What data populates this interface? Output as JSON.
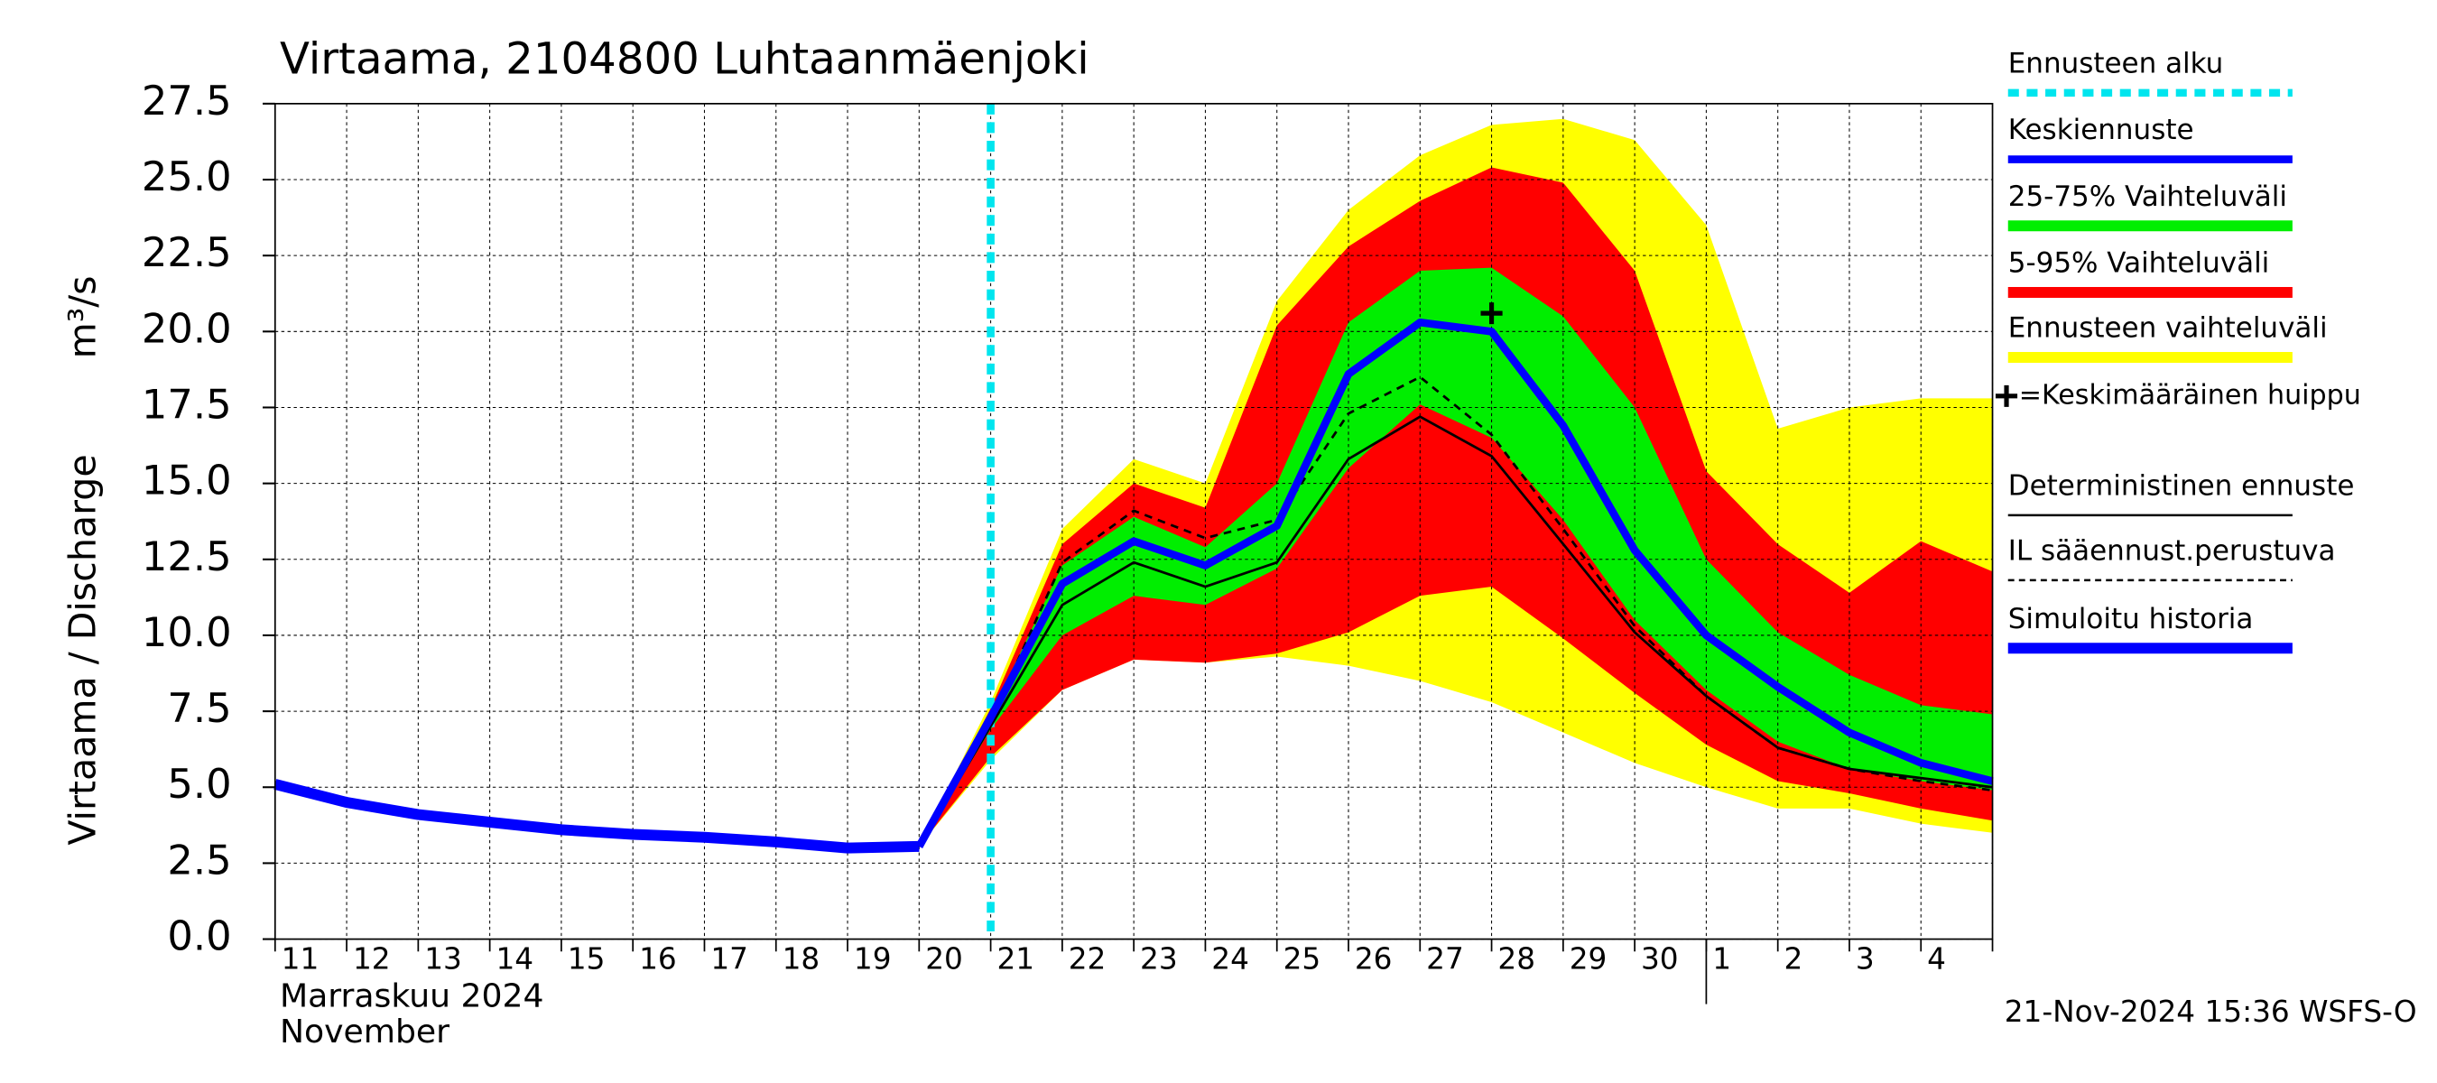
{
  "chart_data": {
    "type": "line",
    "title": "Virtaama, 2104800 Luhtaanmäenjoki",
    "ylabel": "Virtaama / Discharge",
    "yunit": "m³/s",
    "month_labels": [
      "Marraskuu 2024",
      "November"
    ],
    "footer": "21-Nov-2024 15:36 WSFS-O",
    "categories": [
      "11",
      "12",
      "13",
      "14",
      "15",
      "16",
      "17",
      "18",
      "19",
      "20",
      "21",
      "22",
      "23",
      "24",
      "25",
      "26",
      "27",
      "28",
      "29",
      "30",
      "1",
      "2",
      "3",
      "4",
      null
    ],
    "month_break": "1",
    "ylim": [
      0,
      27.5
    ],
    "yticks": [
      {
        "value": 0,
        "label": "0.0"
      },
      2.5,
      {
        "value": 5,
        "label": "5.0"
      },
      7.5,
      {
        "value": 10,
        "label": "10.0"
      },
      12.5,
      {
        "value": 15,
        "label": "15.0"
      },
      17.5,
      {
        "value": 20,
        "label": "20.0"
      },
      22.5,
      {
        "value": 25,
        "label": "25.0"
      },
      27.5
    ],
    "grid": true,
    "forecast_start": {
      "name": "Ennusteen alku",
      "color": "#00e5ee",
      "at": "21"
    },
    "bands": [
      {
        "name": "Ennusteen vaihteluväli",
        "color": "#ffff00",
        "high": [
          null,
          null,
          null,
          null,
          null,
          null,
          null,
          null,
          null,
          3.05,
          7.8,
          13.5,
          15.8,
          15.0,
          21.0,
          24.0,
          25.8,
          26.8,
          27.0,
          26.3,
          23.5,
          16.8,
          17.5,
          17.8,
          17.8
        ],
        "low": [
          null,
          null,
          null,
          null,
          null,
          null,
          null,
          null,
          null,
          3.05,
          5.9,
          8.2,
          9.2,
          9.1,
          9.3,
          9.0,
          8.5,
          7.8,
          6.8,
          5.8,
          5.0,
          4.3,
          4.3,
          3.8,
          3.5
        ]
      },
      {
        "name": "5-95% Vaihteluväli",
        "color": "#ff0000",
        "high": [
          null,
          null,
          null,
          null,
          null,
          null,
          null,
          null,
          null,
          3.05,
          7.6,
          13.0,
          15.0,
          14.2,
          20.2,
          22.8,
          24.3,
          25.4,
          24.9,
          22.0,
          15.4,
          13.0,
          11.4,
          13.1,
          12.1
        ],
        "low": [
          null,
          null,
          null,
          null,
          null,
          null,
          null,
          null,
          null,
          3.05,
          6.0,
          8.2,
          9.2,
          9.1,
          9.4,
          10.1,
          11.3,
          11.6,
          9.9,
          8.1,
          6.4,
          5.2,
          4.8,
          4.3,
          3.9
        ]
      },
      {
        "name": "25-75% Vaihteluväli",
        "color": "#00ee00",
        "high": [
          null,
          null,
          null,
          null,
          null,
          null,
          null,
          null,
          null,
          3.05,
          7.4,
          12.3,
          13.9,
          12.9,
          15.0,
          20.3,
          22.0,
          22.1,
          20.5,
          17.5,
          12.5,
          10.1,
          8.7,
          7.7,
          7.4
        ],
        "low": [
          null,
          null,
          null,
          null,
          null,
          null,
          null,
          null,
          null,
          3.05,
          6.9,
          10.0,
          11.3,
          11.0,
          12.2,
          15.5,
          17.6,
          16.5,
          13.8,
          10.5,
          8.2,
          6.5,
          5.6,
          5.2,
          4.9
        ]
      }
    ],
    "series": [
      {
        "name": "Keskiennuste",
        "color": "#0000ff",
        "style": "solid",
        "width": 5,
        "values": [
          null,
          null,
          null,
          null,
          null,
          null,
          null,
          null,
          null,
          3.05,
          7.3,
          11.7,
          13.1,
          12.3,
          13.6,
          18.6,
          20.3,
          20.0,
          16.9,
          12.8,
          10.0,
          8.3,
          6.8,
          5.8,
          5.2
        ]
      },
      {
        "name": "Deterministinen ennuste",
        "color": "#000000",
        "style": "solid",
        "width": 1.6,
        "values": [
          null,
          null,
          null,
          null,
          null,
          null,
          null,
          null,
          null,
          3.05,
          7.0,
          11.0,
          12.4,
          11.6,
          12.4,
          15.8,
          17.2,
          15.9,
          13.0,
          10.1,
          8.0,
          6.3,
          5.6,
          5.3,
          5.0
        ]
      },
      {
        "name": "IL sääennust.perustuva",
        "color": "#000000",
        "style": "dashed",
        "width": 1.6,
        "values": [
          null,
          null,
          null,
          null,
          null,
          null,
          null,
          null,
          null,
          3.05,
          7.2,
          12.4,
          14.1,
          13.2,
          13.8,
          17.3,
          18.5,
          16.6,
          13.5,
          10.3,
          8.0,
          6.3,
          5.6,
          5.2,
          4.9
        ]
      },
      {
        "name": "Simuloitu historia",
        "color": "#0000ff",
        "style": "solid",
        "width": 7,
        "values": [
          5.1,
          4.5,
          4.1,
          3.85,
          3.6,
          3.45,
          3.35,
          3.2,
          3.0,
          3.05,
          null,
          null,
          null,
          null,
          null,
          null,
          null,
          null,
          null,
          null,
          null,
          null,
          null,
          null,
          null
        ]
      }
    ],
    "peak": {
      "name": "=Keskimääräinen huippu",
      "at": "28",
      "value": 20.6
    }
  }
}
